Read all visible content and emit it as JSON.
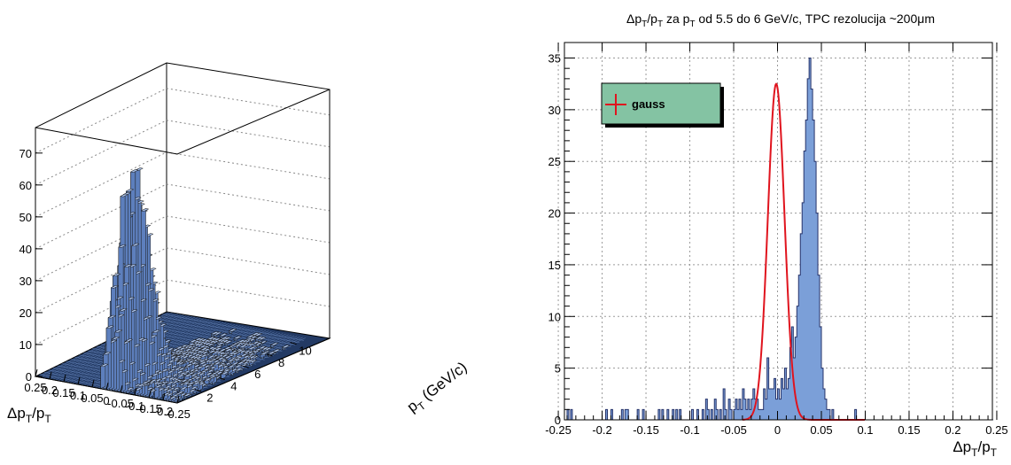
{
  "colors": {
    "bar_fill": "#7b9fd8",
    "bar_edge": "#1a1a1a",
    "fit_line": "#e0141e",
    "legend_fill": "#84c3a3",
    "grid": "#9a9a9a"
  },
  "chart_data": [
    {
      "type": "lego3d",
      "title": "",
      "x_tick_labels": [
        "0.25",
        "0.2",
        "0.15",
        "0.1",
        "0.05",
        "0",
        "-0.05",
        "-0.1",
        "-0.15",
        "-0.2",
        "-0.25"
      ],
      "x_label_main": "Δp",
      "x_label_sub1": "T",
      "x_label_mid": "/p",
      "x_label_sub2": "T",
      "y_tick_labels": [
        "2",
        "4",
        "6",
        "8",
        "10"
      ],
      "y_label_main": "p",
      "y_label_sub": "T",
      "y_label_rest": " (GeV/c)",
      "z_tick_labels": [
        "0",
        "10",
        "20",
        "30",
        "40",
        "50",
        "60",
        "70"
      ],
      "xlim": [
        0.25,
        -0.25
      ],
      "ylim": [
        0,
        11
      ],
      "zlim": [
        0,
        78
      ],
      "peak": 71,
      "grid": true
    },
    {
      "type": "histogram",
      "title_parts": [
        "Δp",
        "T",
        "/p",
        "T",
        " za p",
        "T",
        " od 5.5 do 6 GeV/c, TPC rezolucija ~200μm"
      ],
      "x_tick_labels": [
        "-0.25",
        "-0.2",
        "-0.15",
        "-0.1",
        "-0.05",
        "0",
        "0.05",
        "0.1",
        "0.15",
        "0.2",
        "0.25"
      ],
      "x_ticks": [
        -0.25,
        -0.2,
        -0.15,
        -0.1,
        -0.05,
        0,
        0.05,
        0.1,
        0.15,
        0.2,
        0.25
      ],
      "y_tick_labels": [
        "0",
        "5",
        "10",
        "15",
        "20",
        "25",
        "30",
        "35"
      ],
      "y_ticks": [
        0,
        5,
        10,
        15,
        20,
        25,
        30,
        35
      ],
      "xlabel_parts": [
        "Δp",
        "T",
        "/p",
        "T"
      ],
      "xlim": [
        -0.243,
        0.245
      ],
      "ylim": [
        0,
        36.5
      ],
      "bin_width": 0.002,
      "x_start": -0.24,
      "counts": [
        1,
        0,
        1,
        0,
        0,
        0,
        0,
        0,
        0,
        0,
        0,
        0,
        0,
        0,
        0,
        0,
        0,
        0,
        0,
        0,
        0,
        0,
        1,
        0,
        0,
        1,
        0,
        0,
        0,
        0,
        0,
        1,
        0,
        1,
        1,
        0,
        0,
        0,
        0,
        0,
        1,
        0,
        0,
        1,
        0,
        0,
        0,
        0,
        0,
        0,
        0,
        0,
        1,
        0,
        1,
        0,
        0,
        1,
        0,
        0,
        1,
        0,
        1,
        0,
        1,
        0,
        0,
        0,
        0,
        0,
        0,
        1,
        0,
        0,
        1,
        0,
        0,
        1,
        0,
        2,
        1,
        0,
        1,
        0,
        2,
        1,
        0,
        1,
        0,
        3,
        1,
        0,
        2,
        1,
        0,
        1,
        2,
        1,
        2,
        1,
        3,
        2,
        1,
        2,
        1,
        2,
        3,
        2,
        2,
        1,
        1,
        1,
        3,
        2,
        6,
        3,
        3,
        3,
        4,
        2,
        3,
        2,
        4,
        3,
        5,
        3,
        4,
        7,
        9,
        6,
        8,
        11,
        14,
        18,
        21,
        26,
        29,
        33,
        35,
        32,
        29,
        25,
        20,
        14,
        9,
        5,
        3,
        2,
        1,
        1,
        0,
        1,
        0,
        0,
        0,
        0,
        0,
        0,
        0,
        0,
        0,
        0,
        0,
        0,
        1,
        0,
        0,
        0,
        0,
        0,
        0,
        0,
        0,
        0,
        0,
        0,
        0,
        0,
        0,
        0,
        0,
        0,
        0,
        0,
        0,
        0,
        0,
        0,
        0,
        0,
        0,
        0,
        0,
        0,
        0,
        0,
        0,
        0,
        0,
        0,
        0,
        0,
        0,
        0,
        0,
        0,
        0,
        0,
        0,
        0,
        0,
        0,
        0,
        0,
        0,
        0,
        0,
        0,
        0,
        0,
        0,
        0,
        0,
        0,
        0,
        0,
        0,
        0,
        0,
        0,
        0,
        0,
        0,
        0,
        0,
        0,
        0,
        0,
        0,
        0,
        0,
        0,
        0
      ],
      "fit": {
        "name": "gauss",
        "amplitude": 32.5,
        "mean": -0.0015,
        "sigma": 0.0095,
        "range": [
          -0.04,
          0.1
        ]
      },
      "legend": {
        "entry": "gauss",
        "placement": "top-left"
      },
      "grid": true
    }
  ]
}
